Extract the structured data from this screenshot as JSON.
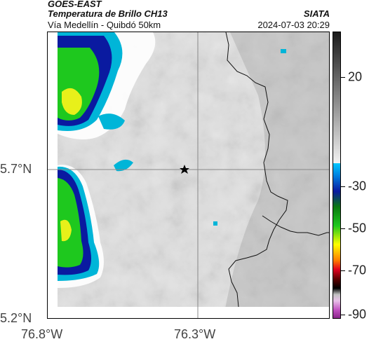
{
  "header": {
    "satellite": "GOES-EAST",
    "product": "Temperatura de Brillo CH13",
    "subtitle": "Vía Medellín - Quibdó 50km",
    "organization": "SIATA",
    "datetime": "2024-07-03 20:29"
  },
  "map": {
    "y_ticks": [
      "5.7°N",
      "5.2°N"
    ],
    "x_ticks": [
      "76.8°W",
      "76.3°W"
    ],
    "marker_icon": "star-icon"
  },
  "colorbar": {
    "ticks": [
      "20",
      "-30",
      "-50",
      "-70",
      "-90"
    ],
    "colors": {
      "warm_gray_light": "#f2f2f2",
      "warm_gray_dark": "#1a1a1a",
      "cyan": "#00b5d8",
      "blue": "#0a1aa0",
      "green": "#1ec81e",
      "yellow": "#ffff00",
      "red": "#e0001e",
      "black": "#000000",
      "magenta": "#b040c0"
    }
  }
}
